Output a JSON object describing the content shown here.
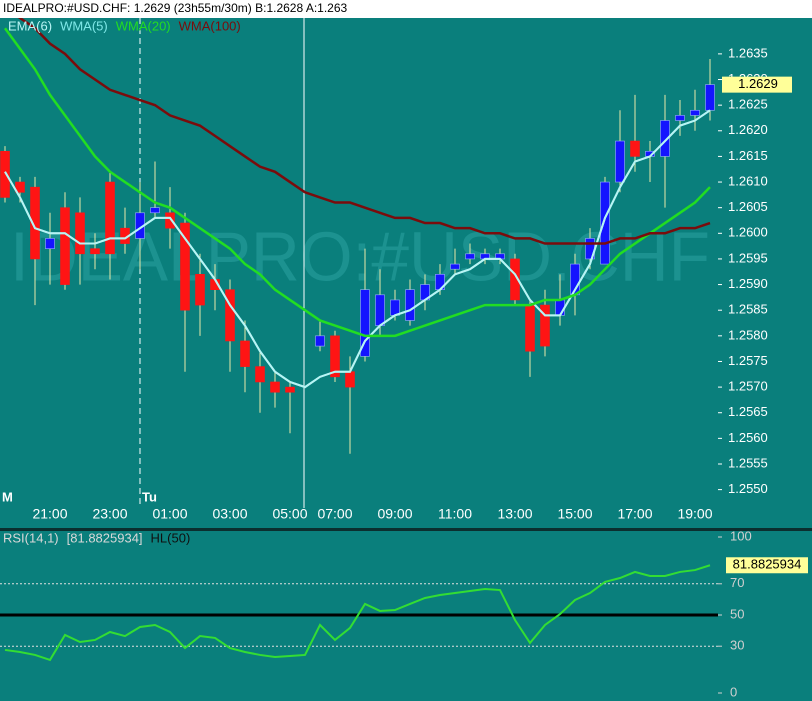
{
  "header": {
    "text": "IDEALPRO:#USD.CHF: 1.2629 (23h55m/30m)  B:1.2628 A:1.263"
  },
  "watermark": "IDEALPRO:#USD.CHF",
  "chart_data": [
    {
      "type": "candlestick",
      "categories": [
        null,
        null,
        null,
        "21:00",
        null,
        null,
        null,
        "23:00",
        null,
        null,
        null,
        "01:00",
        null,
        null,
        null,
        "03:00",
        null,
        null,
        null,
        "05:00",
        null,
        null,
        "07:00",
        null,
        null,
        null,
        "09:00",
        null,
        null,
        null,
        "11:00",
        null,
        null,
        null,
        "13:00",
        null,
        null,
        null,
        "15:00",
        null,
        null,
        null,
        "17:00",
        null,
        null,
        null,
        "19:00",
        null
      ],
      "open": [
        1.2616,
        1.261,
        1.2609,
        1.2597,
        1.2605,
        1.2604,
        1.2597,
        1.261,
        1.2601,
        1.2599,
        1.2604,
        1.2604,
        1.2602,
        1.2592,
        1.2591,
        1.2589,
        1.2579,
        1.2574,
        1.2571,
        1.257,
        null,
        1.2578,
        1.258,
        1.2573,
        1.2576,
        1.2582,
        1.2584,
        1.2583,
        1.2587,
        1.2589,
        1.2593,
        1.2595,
        1.2595,
        1.2595,
        1.2595,
        1.2586,
        1.2586,
        1.2584,
        1.2588,
        1.2595,
        1.2594,
        1.261,
        1.2618,
        1.2615,
        1.2615,
        1.2622,
        1.2623,
        1.2624
      ],
      "high": [
        1.2617,
        1.2611,
        1.2611,
        1.2604,
        1.2608,
        1.2607,
        1.26,
        1.2612,
        1.2605,
        1.261,
        1.2614,
        1.2609,
        1.2604,
        1.2596,
        1.2594,
        1.2591,
        1.2583,
        1.2577,
        1.2573,
        1.2571,
        null,
        1.2583,
        1.2581,
        1.2576,
        1.2597,
        1.2593,
        1.2589,
        1.2591,
        1.2592,
        1.2594,
        1.2597,
        1.2598,
        1.2597,
        1.2597,
        1.2596,
        1.2587,
        1.2589,
        1.2592,
        1.2596,
        1.2601,
        1.2611,
        1.2624,
        1.2627,
        1.2618,
        1.2627,
        1.2626,
        1.2628,
        1.2634
      ],
      "low": [
        1.2606,
        1.2606,
        1.2586,
        1.259,
        1.2589,
        1.259,
        1.2593,
        1.2591,
        1.2596,
        1.2593,
        1.2603,
        1.2597,
        1.2573,
        1.258,
        1.2585,
        1.2573,
        1.2569,
        1.2565,
        1.2566,
        1.2561,
        null,
        1.2577,
        1.2571,
        1.2557,
        1.2575,
        1.258,
        1.2583,
        1.2582,
        1.2585,
        1.2588,
        1.2592,
        1.2594,
        1.2594,
        1.2594,
        1.2586,
        1.2572,
        1.2576,
        1.2582,
        1.2584,
        1.2593,
        1.2594,
        1.2608,
        1.2612,
        1.261,
        1.2605,
        1.2619,
        1.262,
        1.2622
      ],
      "close": [
        1.2607,
        1.2608,
        1.2595,
        1.2599,
        1.259,
        1.2596,
        1.2596,
        1.2596,
        1.2598,
        1.2604,
        1.2605,
        1.2601,
        1.2585,
        1.2586,
        1.2589,
        1.2579,
        1.2574,
        1.2571,
        1.2569,
        1.2569,
        null,
        1.258,
        1.2572,
        1.257,
        1.2589,
        1.2588,
        1.2587,
        1.2589,
        1.259,
        1.2592,
        1.2594,
        1.2596,
        1.2596,
        1.2596,
        1.2587,
        1.2577,
        1.2578,
        1.2587,
        1.2594,
        1.2599,
        1.261,
        1.2618,
        1.2615,
        1.2616,
        1.2622,
        1.2623,
        1.2624,
        1.2629
      ],
      "up_color": "#1414ff",
      "down_color": "#ff1414",
      "wick_color": "#e8e8a8",
      "last_label_color": "#ffff99",
      "ylim": [
        1.2547,
        1.2642
      ],
      "yticks": [
        {
          "value": 1.255,
          "label": "1.2550"
        },
        1.2555,
        {
          "value": 1.256,
          "label": "1.2560"
        },
        1.2565,
        {
          "value": 1.257,
          "label": "1.2570"
        },
        1.2575,
        {
          "value": 1.258,
          "label": "1.2580"
        },
        1.2585,
        {
          "value": 1.259,
          "label": "1.2590"
        },
        1.2595,
        {
          "value": 1.26,
          "label": "1.2600"
        },
        1.2605,
        {
          "value": 1.261,
          "label": "1.2610"
        },
        1.2615,
        {
          "value": 1.262,
          "label": "1.2620"
        },
        1.2625,
        {
          "value": 1.263,
          "label": "1.2630"
        },
        1.2635
      ],
      "day_markers": [
        {
          "label": "M",
          "category": 0
        },
        {
          "label": "Tu",
          "category": 9
        }
      ],
      "series": [
        {
          "name": "EMA(6)",
          "color": "#b8f4f4",
          "values": [
            1.2612,
            1.2607,
            1.2601,
            1.26,
            1.26,
            1.2598,
            1.2598,
            1.2599,
            1.2599,
            1.2601,
            1.2603,
            1.2603,
            1.2599,
            1.2595,
            1.2591,
            1.2586,
            1.2582,
            1.2577,
            1.2573,
            1.2571,
            1.257,
            1.2572,
            1.2573,
            1.2573,
            1.2579,
            1.2582,
            1.2584,
            1.2585,
            1.2587,
            1.2589,
            1.2592,
            1.2593,
            1.2595,
            1.2595,
            1.2592,
            1.2587,
            1.2584,
            1.2584,
            1.2589,
            1.2594,
            1.2603,
            1.2609,
            1.2614,
            1.2615,
            1.2618,
            1.2621,
            1.2622,
            1.2624
          ]
        },
        {
          "name": "WMA(5)",
          "color": "#7fe8e8",
          "values": [
            1.2612,
            1.2607,
            1.2601,
            1.26,
            1.26,
            1.2598,
            1.2598,
            1.2599,
            1.2599,
            1.2601,
            1.2603,
            1.2603,
            1.2599,
            1.2595,
            1.2591,
            1.2586,
            1.2582,
            1.2577,
            1.2573,
            1.2571,
            1.257,
            1.2572,
            1.2573,
            1.2573,
            1.2579,
            1.2582,
            1.2584,
            1.2585,
            1.2587,
            1.2589,
            1.2592,
            1.2593,
            1.2595,
            1.2595,
            1.2592,
            1.2587,
            1.2584,
            1.2584,
            1.2589,
            1.2594,
            1.2603,
            1.2609,
            1.2614,
            1.2615,
            1.2618,
            1.2621,
            1.2622,
            1.2624
          ]
        },
        {
          "name": "WMA(20)",
          "color": "#22dd22",
          "values": [
            1.264,
            1.2636,
            1.2632,
            1.2627,
            1.2623,
            1.2619,
            1.2615,
            1.2612,
            1.261,
            1.2608,
            1.2606,
            1.2605,
            1.2603,
            1.2601,
            1.2599,
            1.2597,
            1.2594,
            1.2592,
            1.2589,
            1.2587,
            1.2585,
            1.2583,
            1.2582,
            1.2581,
            1.258,
            1.258,
            1.258,
            1.2581,
            1.2582,
            1.2583,
            1.2584,
            1.2585,
            1.2586,
            1.2586,
            1.2586,
            1.2586,
            1.2587,
            1.2587,
            1.2588,
            1.259,
            1.2593,
            1.2596,
            1.2598,
            1.26,
            1.2602,
            1.2604,
            1.2606,
            1.2609
          ]
        },
        {
          "name": "WMA(100)",
          "color": "#7a0c0c",
          "values": [
            1.2644,
            1.2642,
            1.264,
            1.2637,
            1.2635,
            1.2632,
            1.263,
            1.2628,
            1.2627,
            1.2626,
            1.2625,
            1.2623,
            1.2622,
            1.2621,
            1.2619,
            1.2617,
            1.2615,
            1.2613,
            1.2612,
            1.261,
            1.2608,
            1.2607,
            1.2606,
            1.2606,
            1.2605,
            1.2604,
            1.2603,
            1.2603,
            1.2602,
            1.2602,
            1.2601,
            1.2601,
            1.26,
            1.26,
            1.2599,
            1.2599,
            1.2598,
            1.2598,
            1.2598,
            1.2598,
            1.2598,
            1.2599,
            1.2599,
            1.26,
            1.26,
            1.2601,
            1.2601,
            1.2602
          ]
        }
      ]
    },
    {
      "type": "line",
      "series": [
        {
          "name": "RSI(14,1)",
          "color": "#33dd33",
          "values": [
            27.6,
            26.3,
            24.4,
            21.2,
            37.2,
            32.7,
            34.0,
            39.1,
            36.5,
            42.3,
            43.6,
            39.1,
            28.8,
            36.5,
            35.3,
            28.8,
            26.3,
            24.4,
            23.1,
            23.7,
            24.4,
            43.6,
            34.0,
            41.7,
            57.1,
            52.6,
            53.2,
            57.1,
            60.9,
            62.8,
            64.1,
            65.4,
            66.7,
            66.0,
            46.8,
            32.1,
            43.6,
            50.6,
            59.6,
            64.1,
            71.2,
            73.7,
            77.6,
            75.0,
            75.0,
            77.6,
            78.8,
            81.8825934
          ]
        }
      ],
      "current_label": "[81.8825934]",
      "hline": {
        "name": "HL(50)",
        "value": 50,
        "color": "#000000"
      },
      "levels": [
        70,
        30
      ],
      "last_label_color": "#ffff99",
      "ylim": [
        0,
        100
      ],
      "yticks": [
        0,
        30,
        50,
        70,
        100
      ]
    }
  ]
}
